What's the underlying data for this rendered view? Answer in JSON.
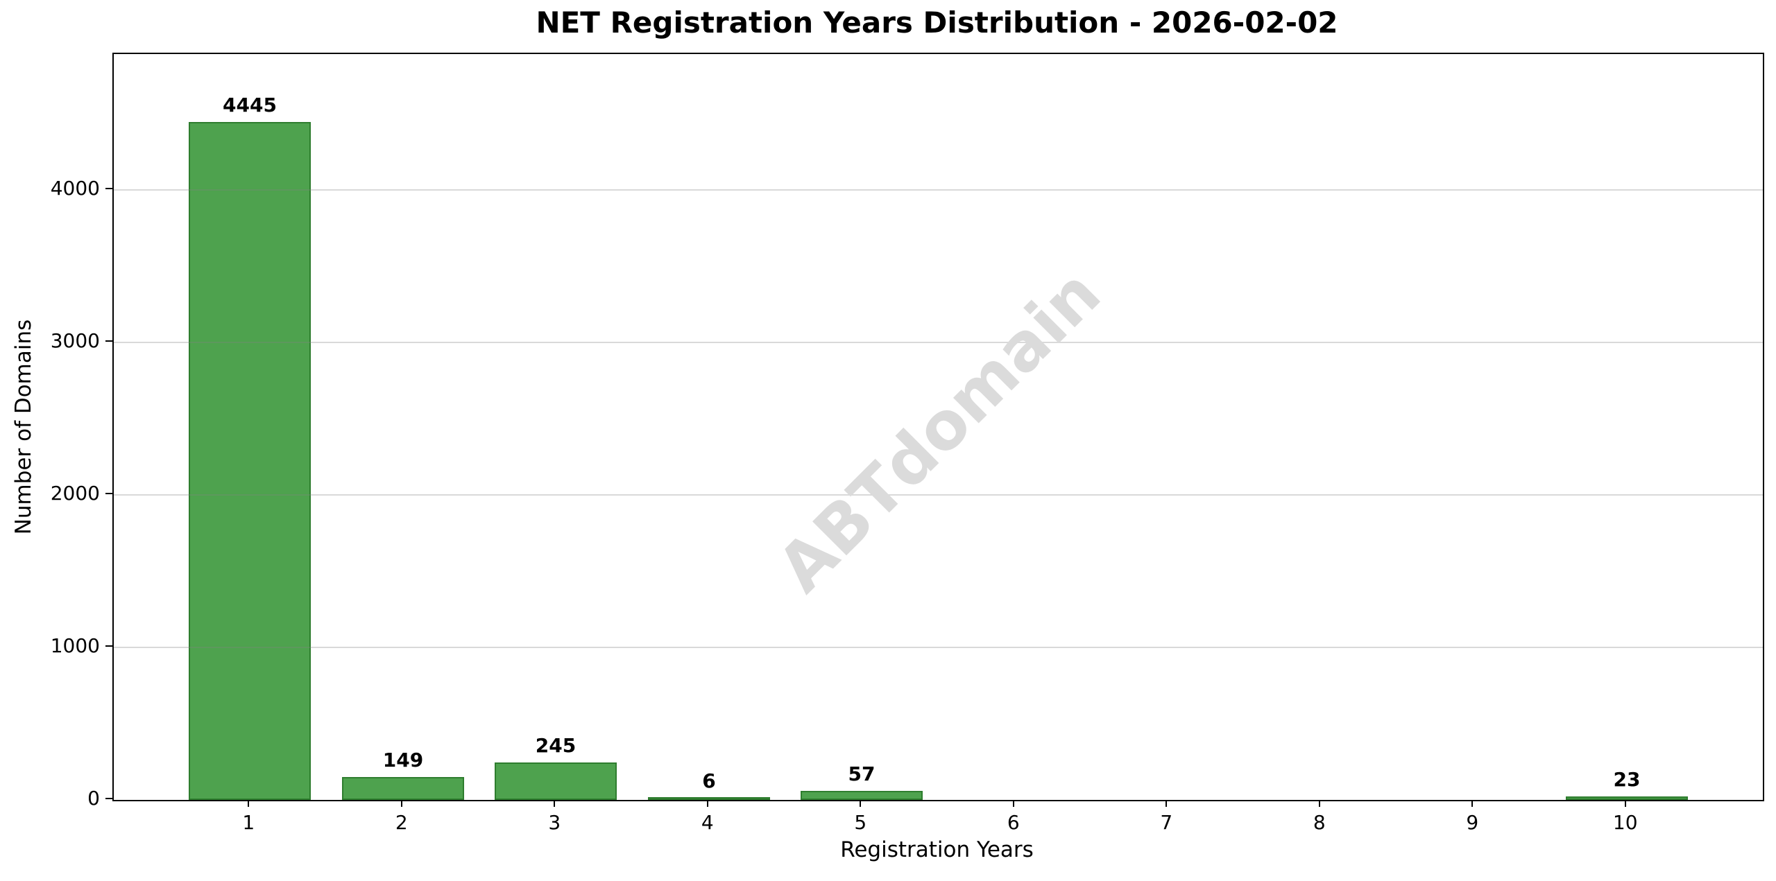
{
  "chart_data": {
    "type": "bar",
    "title": "NET Registration Years Distribution - 2026-02-02",
    "xlabel": "Registration Years",
    "ylabel": "Number of Domains",
    "categories": [
      "1",
      "2",
      "3",
      "4",
      "5",
      "6",
      "7",
      "8",
      "9",
      "10"
    ],
    "values": [
      4445,
      149,
      245,
      6,
      57,
      0,
      0,
      0,
      0,
      23
    ],
    "bar_labels": [
      "4445",
      "149",
      "245",
      "6",
      "57",
      "",
      "",
      "",
      "",
      "23"
    ],
    "yticks": [
      0,
      1000,
      2000,
      3000,
      4000
    ],
    "ytick_labels": [
      "0",
      "1000",
      "2000",
      "3000",
      "4000"
    ],
    "ylim": [
      0,
      4890
    ],
    "xlim": [
      0.11,
      10.89
    ],
    "bar_width_fraction": 0.8,
    "grid": "horizontal-over-bars",
    "legend": "none",
    "colors": {
      "bar_fill": "#4ea24e",
      "bar_edge": "#2e7d2e",
      "gridline": "rgba(128,128,128,0.3)",
      "axis": "#000000",
      "text": "#000000",
      "watermark": "#dbdbdb",
      "background": "#ffffff"
    }
  },
  "watermark": {
    "text": "ABTdomain"
  }
}
